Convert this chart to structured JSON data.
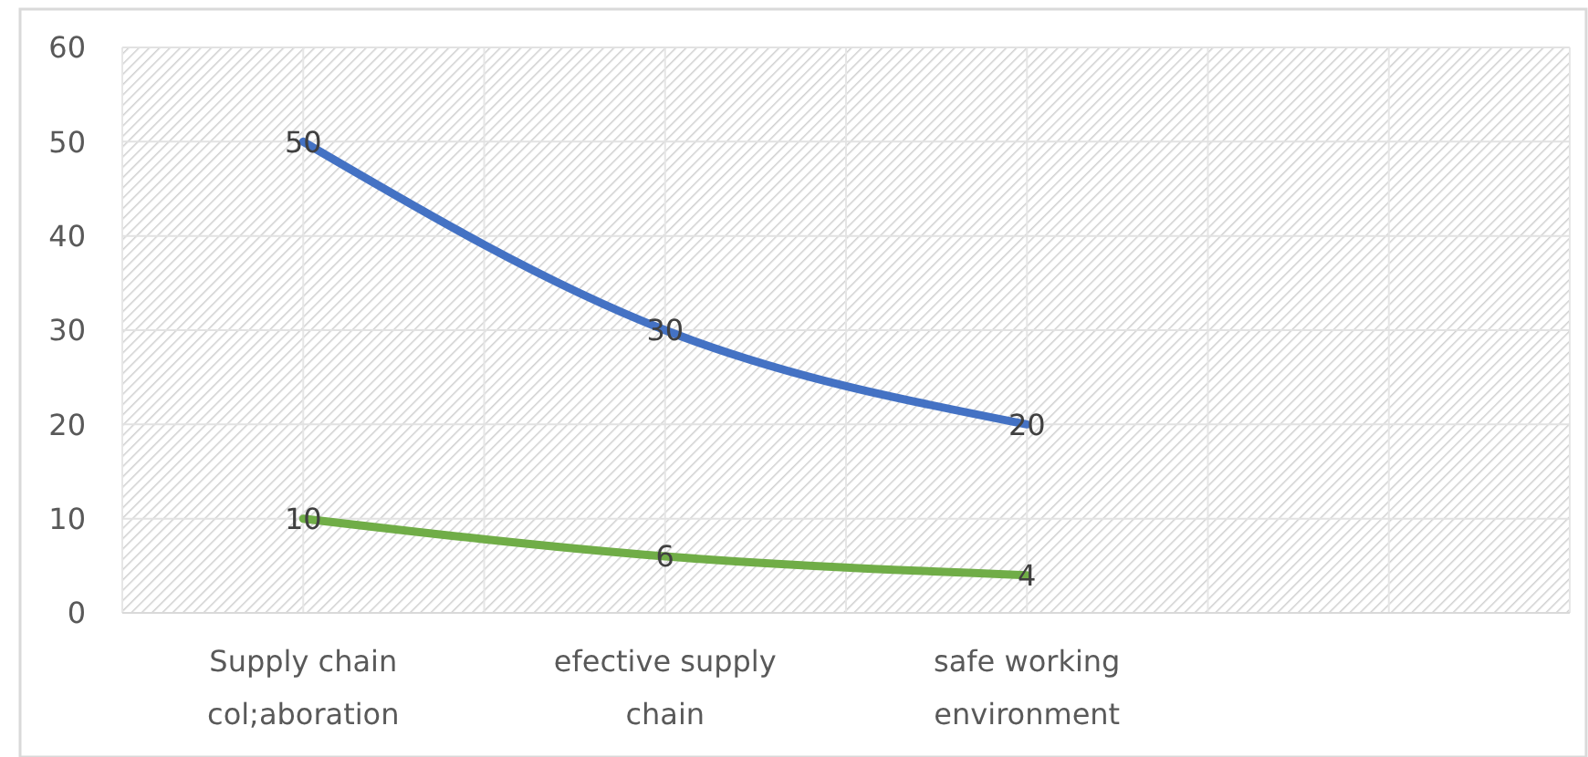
{
  "chart_data": {
    "type": "line",
    "categories": [
      "Supply chain col;aboration",
      "efective supply chain",
      "safe working environment",
      null
    ],
    "series": [
      {
        "color": "#4472c4",
        "values": [
          50,
          30,
          20,
          null
        ]
      },
      {
        "color": "#70ad47",
        "values": [
          10,
          6,
          4,
          null
        ]
      }
    ],
    "ylim": [
      0,
      60
    ],
    "yticks": [
      0,
      10,
      20,
      30,
      40,
      50,
      60
    ],
    "grid": true,
    "data_labels": true,
    "marker": "none"
  }
}
